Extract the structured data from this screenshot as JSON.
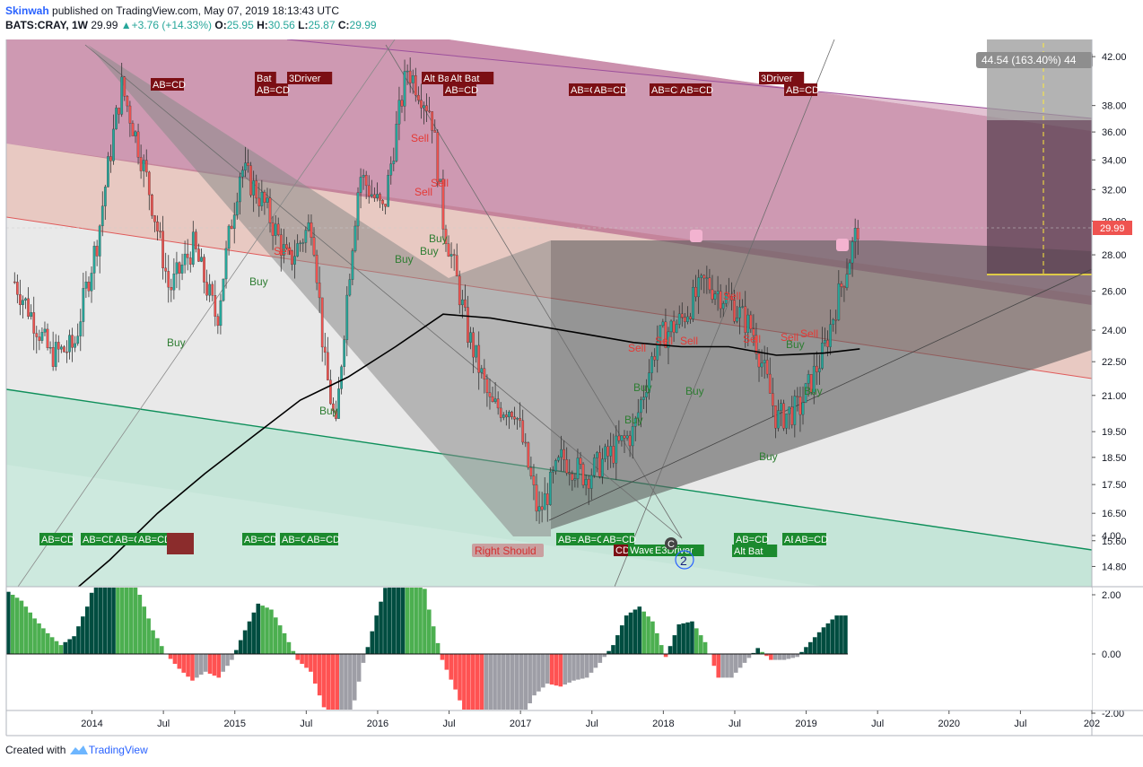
{
  "header": {
    "author": "Skinwah",
    "published": "published on TradingView.com, May 07, 2019 18:13:43 UTC",
    "symbol": "BATS:CRAY, 1W",
    "last": "29.99",
    "change": "+3.76 (+14.33%)",
    "o_label": "O:",
    "o_val": "25.95",
    "h_label": "H:",
    "h_val": "30.56",
    "l_label": "L:",
    "l_val": "25.87",
    "c_label": "C:",
    "c_val": "29.99"
  },
  "footer": {
    "created_with": "Created with",
    "brand": "TradingView"
  },
  "colors": {
    "bull": "#26a69a",
    "bear": "#ef5350",
    "price_tag": "#ef5350",
    "hist_dark": "#004d40",
    "hist_light": "#4caf50",
    "hist_red": "#ff5252",
    "hist_gray": "#9e9ea6",
    "pink_channel": "#b0557f",
    "teal_channel": "#a8dcc9",
    "gray_triangle": "#555555"
  },
  "chart_data": {
    "type": "line",
    "title": "",
    "xlabel": "",
    "ylabel": "",
    "scale": "log",
    "ylim": [
      14.2,
      43.5
    ],
    "y_ticks": [
      "42.00",
      "38.00",
      "36.00",
      "34.00",
      "32.00",
      "30.00",
      "28.00",
      "26.00",
      "24.00",
      "22.50",
      "21.00",
      "19.50",
      "18.50",
      "17.50",
      "16.50",
      "15.60",
      "14.80"
    ],
    "x_ticks": [
      "2014",
      "Jul",
      "2015",
      "Jul",
      "2016",
      "Jul",
      "2017",
      "Jul",
      "2018",
      "Jul",
      "2019",
      "Jul",
      "2020",
      "Jul",
      "202"
    ],
    "last_price_tag": "29.99",
    "projection_label": "44.54 (163.40%) 44",
    "series": [
      {
        "name": "",
        "x": [
          "2013-06",
          "2013-09",
          "2013-11",
          "2014-01",
          "2014-03",
          "2014-05",
          "2014-07",
          "2014-09",
          "2014-11",
          "2015-01",
          "2015-03",
          "2015-05",
          "2015-07",
          "2015-08",
          "2015-09",
          "2015-11",
          "2016-01",
          "2016-03",
          "2016-05",
          "2016-06",
          "2016-08",
          "2016-10",
          "2016-12",
          "2017-02",
          "2017-04",
          "2017-06",
          "2017-08",
          "2017-10",
          "2017-12",
          "2018-02",
          "2018-04",
          "2018-06",
          "2018-08",
          "2018-10",
          "2018-12",
          "2019-02",
          "2019-04",
          "2019-05"
        ],
        "values": [
          26.5,
          22.8,
          23.2,
          29.0,
          39.5,
          33.0,
          26.0,
          28.5,
          24.5,
          33.5,
          31.0,
          27.5,
          30.0,
          22.5,
          19.5,
          33.0,
          30.5,
          41.0,
          37.5,
          30.0,
          24.0,
          20.5,
          20.5,
          16.4,
          18.5,
          17.8,
          18.6,
          19.5,
          23.5,
          24.5,
          26.5,
          25.5,
          24.0,
          20.0,
          20.5,
          23.0,
          27.5,
          29.99
        ]
      },
      {
        "name": "",
        "x": [
          "2013-10",
          "2014-02",
          "2014-06",
          "2014-10",
          "2015-02",
          "2015-06",
          "2015-10",
          "2016-02",
          "2016-06",
          "2016-10",
          "2017-02",
          "2017-06",
          "2017-10",
          "2018-02",
          "2018-06",
          "2018-10",
          "2019-02",
          "2019-05"
        ],
        "values": [
          13.8,
          15.0,
          16.5,
          17.9,
          19.3,
          20.8,
          21.8,
          23.2,
          24.8,
          24.6,
          24.2,
          23.8,
          23.4,
          23.2,
          23.2,
          22.8,
          22.9,
          23.1
        ]
      }
    ],
    "pattern_labels_top": [
      "AB=CD",
      "Bat",
      "AB=CD",
      "3Driver",
      "Alt Bat",
      "Alt Bat",
      "AB=CD",
      "AB=CD",
      "AB=CD",
      "AB=CD",
      "AB=CD",
      "3Driver",
      "AB=CD"
    ],
    "pattern_labels_bottom": [
      "AB=CD",
      "AB=CD",
      "AB=CD",
      "AB=CD",
      "AB=CD",
      "AB=CD",
      "AB=CD",
      "AB=CD",
      "AB=CD",
      "AB=CD",
      "Alt Bat",
      "AB=CD",
      "AB=CD",
      "AB=CD"
    ],
    "bottom_misc_labels": [
      "CD",
      "Wave",
      "E3Driver",
      "C"
    ],
    "signals": [
      {
        "t": "Sell",
        "x": "2015-07"
      },
      {
        "t": "Buy",
        "x": "2015-07"
      },
      {
        "t": "Buy",
        "x": "2014-11"
      },
      {
        "t": "Buy",
        "x": "2015-11"
      },
      {
        "t": "Sell",
        "x": "2016-05"
      },
      {
        "t": "Sell",
        "x": "2016-06"
      },
      {
        "t": "Sell",
        "x": "2016-07"
      },
      {
        "t": "Buy",
        "x": "2016-05"
      },
      {
        "t": "Buy",
        "x": "2016-06"
      },
      {
        "t": "Buy",
        "x": "2016-07"
      },
      {
        "t": "Sell",
        "x": "2017-12"
      },
      {
        "t": "Sell",
        "x": "2018-01"
      },
      {
        "t": "Sell",
        "x": "2018-02"
      },
      {
        "t": "Sell",
        "x": "2018-06"
      },
      {
        "t": "Sell",
        "x": "2018-09"
      },
      {
        "t": "Sell",
        "x": "2018-12"
      },
      {
        "t": "Sell",
        "x": "2019-01"
      },
      {
        "t": "Buy",
        "x": "2017-11"
      },
      {
        "t": "Buy",
        "x": "2017-12"
      },
      {
        "t": "Buy",
        "x": "2018-01"
      },
      {
        "t": "Buy",
        "x": "2018-03"
      },
      {
        "t": "Buy",
        "x": "2018-11"
      },
      {
        "t": "Buy",
        "x": "2018-12"
      },
      {
        "t": "Buy",
        "x": "2019-02"
      }
    ],
    "misc_labels": {
      "right_shoulder": "Right Should",
      "wave_num": "2"
    },
    "oscillator": {
      "y_ticks": [
        "4.00",
        "2.00",
        "0.00",
        "-2.00"
      ],
      "ylim": [
        -3.3,
        4.2
      ],
      "values": [
        2.1,
        1.8,
        1.2,
        0.7,
        0.3,
        0.6,
        1.6,
        3.0,
        4.0,
        3.3,
        2.0,
        0.8,
        0.0,
        -0.5,
        -0.9,
        -0.6,
        -0.8,
        -0.2,
        0.8,
        1.7,
        1.5,
        0.7,
        -0.2,
        -0.6,
        -1.8,
        -2.8,
        -2.2,
        -0.3,
        1.3,
        2.7,
        3.7,
        3.6,
        1.5,
        -0.2,
        -1.2,
        -2.3,
        -3.2,
        -3.2,
        -2.9,
        -2.2,
        -1.4,
        -1.0,
        -1.1,
        -0.9,
        -0.8,
        -0.3,
        0.3,
        1.3,
        1.6,
        1.1,
        -0.1,
        1.0,
        1.1,
        0.4,
        -0.8,
        -0.8,
        -0.3,
        0.2,
        -0.2,
        -0.2,
        -0.1,
        0.4,
        0.9,
        1.3
      ]
    }
  }
}
